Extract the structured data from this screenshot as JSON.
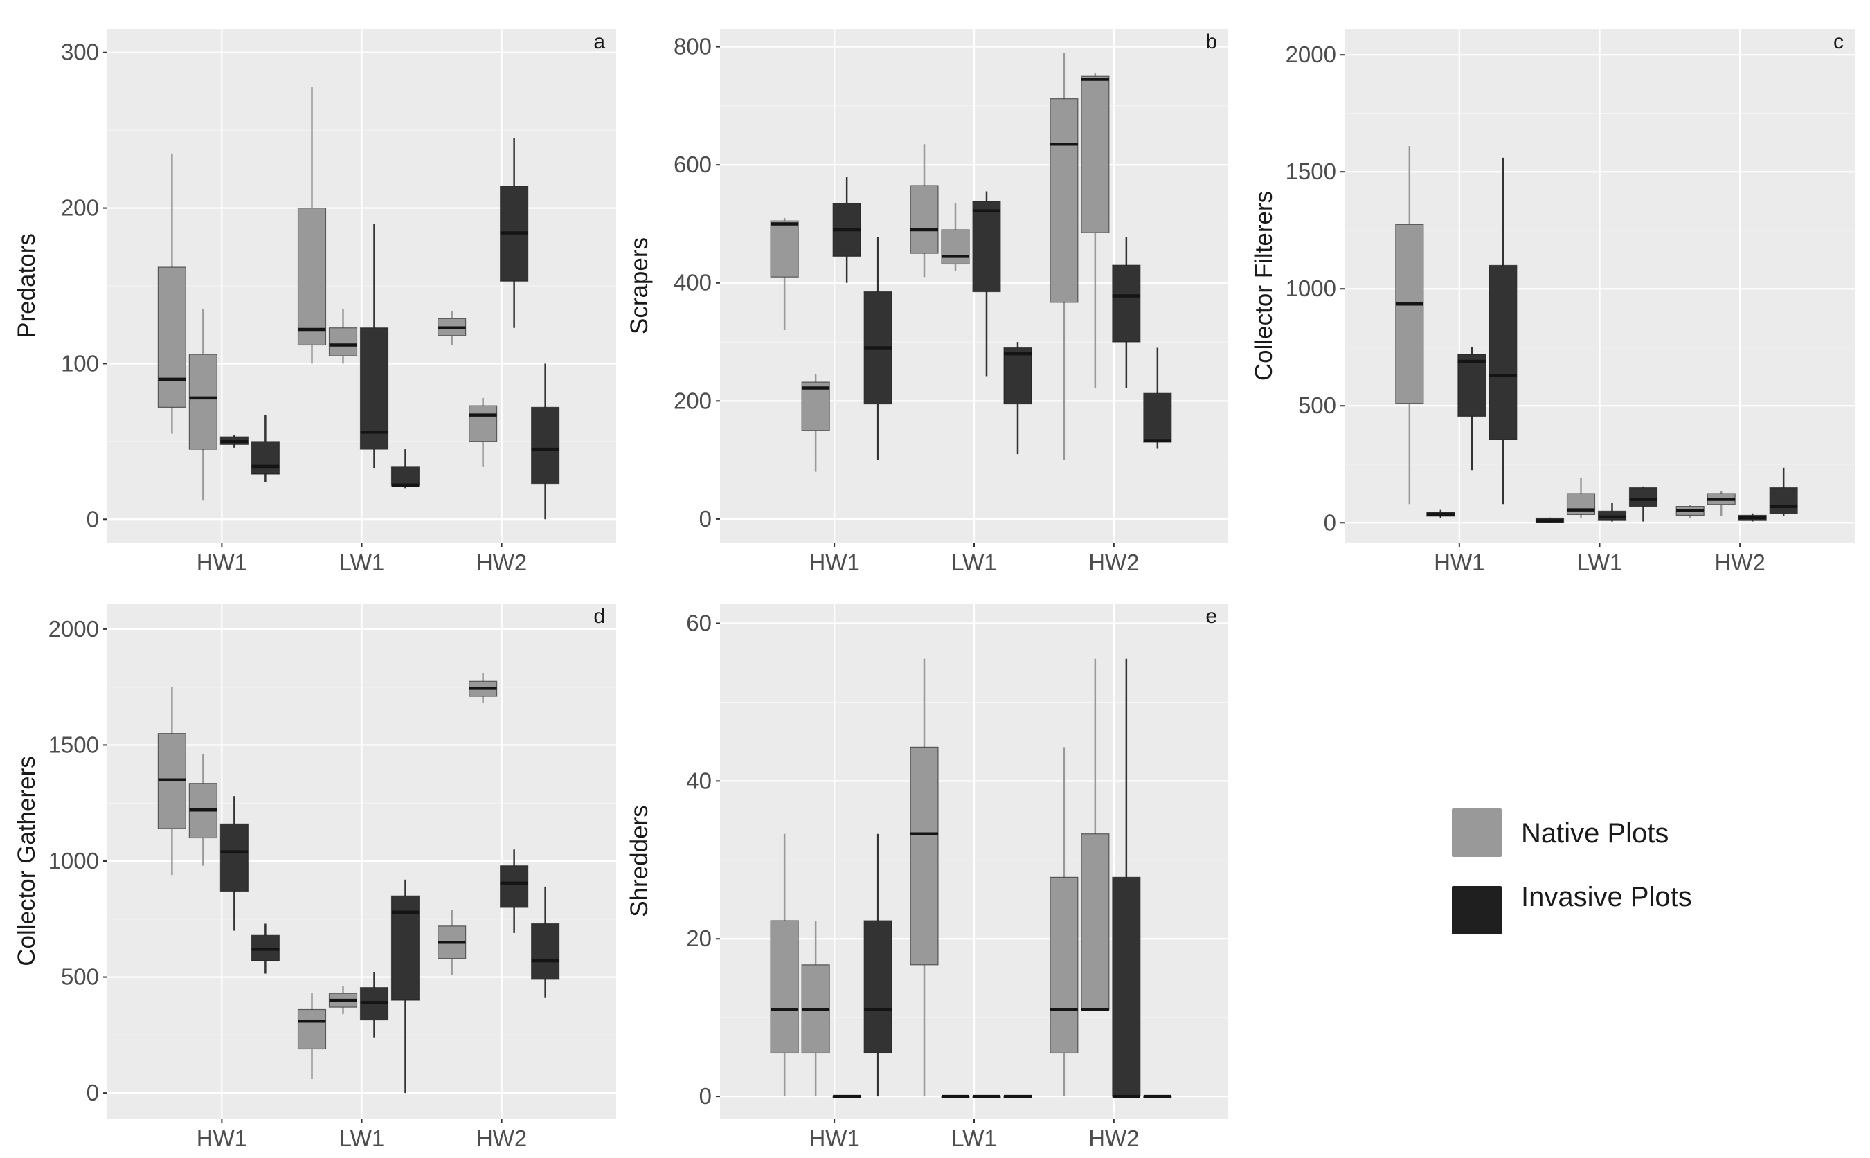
{
  "colors": {
    "native": "#999999",
    "invasive": "#333333",
    "legend_invasive": "#1f1f1f",
    "median": "#141414",
    "panel_bg": "#ebebeb",
    "grid": "#ffffff"
  },
  "legend": {
    "native_label": "Native Plots",
    "invasive_label": "Invasive Plots"
  },
  "chart_data": [
    {
      "type": "boxplot",
      "panel": "a",
      "ylabel": "Predators",
      "xlabel": "",
      "categories": [
        "HW1",
        "LW1",
        "HW2"
      ],
      "ylim": [
        -15,
        315
      ],
      "yticks": [
        0,
        100,
        200,
        300
      ],
      "boxes": [
        {
          "category": "HW1",
          "group": "native",
          "min": 55,
          "q1": 72,
          "median": 90,
          "q3": 162,
          "max": 235
        },
        {
          "category": "HW1",
          "group": "native",
          "min": 12,
          "q1": 45,
          "median": 78,
          "q3": 106,
          "max": 135
        },
        {
          "category": "HW1",
          "group": "invasive",
          "min": 46,
          "q1": 48,
          "median": 50,
          "q3": 53,
          "max": 54
        },
        {
          "category": "HW1",
          "group": "invasive",
          "min": 24,
          "q1": 29,
          "median": 34,
          "q3": 50,
          "max": 67
        },
        {
          "category": "LW1",
          "group": "native",
          "min": 100,
          "q1": 112,
          "median": 122,
          "q3": 200,
          "max": 278
        },
        {
          "category": "LW1",
          "group": "native",
          "min": 100,
          "q1": 105,
          "median": 112,
          "q3": 123,
          "max": 135
        },
        {
          "category": "LW1",
          "group": "invasive",
          "min": 33,
          "q1": 45,
          "median": 56,
          "q3": 123,
          "max": 190
        },
        {
          "category": "LW1",
          "group": "invasive",
          "min": 20,
          "q1": 22,
          "median": 22,
          "q3": 34,
          "max": 45
        },
        {
          "category": "HW2",
          "group": "native",
          "min": 112,
          "q1": 118,
          "median": 123,
          "q3": 129,
          "max": 134
        },
        {
          "category": "HW2",
          "group": "native",
          "min": 34,
          "q1": 50,
          "median": 67,
          "q3": 73,
          "max": 78
        },
        {
          "category": "HW2",
          "group": "invasive",
          "min": 123,
          "q1": 153,
          "median": 184,
          "q3": 214,
          "max": 245
        },
        {
          "category": "HW2",
          "group": "invasive",
          "min": 0,
          "q1": 23,
          "median": 45,
          "q3": 72,
          "max": 100
        }
      ]
    },
    {
      "type": "boxplot",
      "panel": "b",
      "ylabel": "Scrapers",
      "xlabel": "",
      "categories": [
        "HW1",
        "LW1",
        "HW2"
      ],
      "ylim": [
        -40,
        830
      ],
      "yticks": [
        0,
        200,
        400,
        600,
        800
      ],
      "boxes": [
        {
          "category": "HW1",
          "group": "native",
          "min": 320,
          "q1": 410,
          "median": 500,
          "q3": 505,
          "max": 510
        },
        {
          "category": "HW1",
          "group": "native",
          "min": 80,
          "q1": 150,
          "median": 222,
          "q3": 232,
          "max": 245
        },
        {
          "category": "HW1",
          "group": "invasive",
          "min": 400,
          "q1": 445,
          "median": 490,
          "q3": 535,
          "max": 580
        },
        {
          "category": "HW1",
          "group": "invasive",
          "min": 100,
          "q1": 195,
          "median": 290,
          "q3": 385,
          "max": 478
        },
        {
          "category": "LW1",
          "group": "native",
          "min": 410,
          "q1": 450,
          "median": 490,
          "q3": 565,
          "max": 635
        },
        {
          "category": "LW1",
          "group": "native",
          "min": 420,
          "q1": 432,
          "median": 445,
          "q3": 490,
          "max": 535
        },
        {
          "category": "LW1",
          "group": "invasive",
          "min": 242,
          "q1": 385,
          "median": 522,
          "q3": 538,
          "max": 555
        },
        {
          "category": "LW1",
          "group": "invasive",
          "min": 110,
          "q1": 195,
          "median": 280,
          "q3": 290,
          "max": 300
        },
        {
          "category": "HW2",
          "group": "native",
          "min": 100,
          "q1": 367,
          "median": 635,
          "q3": 712,
          "max": 790
        },
        {
          "category": "HW2",
          "group": "native",
          "min": 222,
          "q1": 485,
          "median": 745,
          "q3": 750,
          "max": 755
        },
        {
          "category": "HW2",
          "group": "invasive",
          "min": 222,
          "q1": 300,
          "median": 378,
          "q3": 430,
          "max": 478
        },
        {
          "category": "HW2",
          "group": "invasive",
          "min": 120,
          "q1": 130,
          "median": 133,
          "q3": 213,
          "max": 290
        }
      ]
    },
    {
      "type": "boxplot",
      "panel": "c",
      "ylabel": "Collector Filterers",
      "xlabel": "",
      "categories": [
        "HW1",
        "LW1",
        "HW2"
      ],
      "ylim": [
        -85,
        2110
      ],
      "yticks": [
        0,
        500,
        1000,
        1500,
        2000
      ],
      "boxes": [
        {
          "category": "HW1",
          "group": "native",
          "min": 80,
          "q1": 510,
          "median": 935,
          "q3": 1275,
          "max": 1610
        },
        {
          "category": "HW1",
          "group": "invasive",
          "min": 20,
          "q1": 28,
          "median": 35,
          "q3": 45,
          "max": 55
        },
        {
          "category": "HW1",
          "group": "invasive",
          "min": 225,
          "q1": 455,
          "median": 690,
          "q3": 720,
          "max": 750
        },
        {
          "category": "HW1",
          "group": "invasive",
          "min": 80,
          "q1": 355,
          "median": 630,
          "q3": 1100,
          "max": 1560
        },
        {
          "category": "LW1",
          "group": "invasive",
          "min": -2,
          "q1": 2,
          "median": 8,
          "q3": 20,
          "max": 22
        },
        {
          "category": "LW1",
          "group": "native",
          "min": 20,
          "q1": 35,
          "median": 55,
          "q3": 125,
          "max": 190
        },
        {
          "category": "LW1",
          "group": "invasive",
          "min": 5,
          "q1": 12,
          "median": 25,
          "q3": 50,
          "max": 85
        },
        {
          "category": "LW1",
          "group": "invasive",
          "min": 5,
          "q1": 70,
          "median": 100,
          "q3": 150,
          "max": 155
        },
        {
          "category": "HW2",
          "group": "native",
          "min": 20,
          "q1": 32,
          "median": 52,
          "q3": 70,
          "max": 75
        },
        {
          "category": "HW2",
          "group": "native",
          "min": 30,
          "q1": 78,
          "median": 100,
          "q3": 125,
          "max": 135
        },
        {
          "category": "HW2",
          "group": "invasive",
          "min": 5,
          "q1": 12,
          "median": 22,
          "q3": 32,
          "max": 40
        },
        {
          "category": "HW2",
          "group": "invasive",
          "min": 30,
          "q1": 40,
          "median": 70,
          "q3": 150,
          "max": 235
        }
      ]
    },
    {
      "type": "boxplot",
      "panel": "d",
      "ylabel": "Collector Gatherers",
      "xlabel": "",
      "categories": [
        "HW1",
        "LW1",
        "HW2"
      ],
      "ylim": [
        -110,
        2110
      ],
      "yticks": [
        0,
        500,
        1000,
        1500,
        2000
      ],
      "boxes": [
        {
          "category": "HW1",
          "group": "native",
          "min": 940,
          "q1": 1140,
          "median": 1350,
          "q3": 1550,
          "max": 1750
        },
        {
          "category": "HW1",
          "group": "native",
          "min": 980,
          "q1": 1100,
          "median": 1220,
          "q3": 1335,
          "max": 1460
        },
        {
          "category": "HW1",
          "group": "invasive",
          "min": 700,
          "q1": 870,
          "median": 1040,
          "q3": 1160,
          "max": 1280
        },
        {
          "category": "HW1",
          "group": "invasive",
          "min": 515,
          "q1": 570,
          "median": 620,
          "q3": 680,
          "max": 730
        },
        {
          "category": "LW1",
          "group": "native",
          "min": 60,
          "q1": 190,
          "median": 310,
          "q3": 360,
          "max": 430
        },
        {
          "category": "LW1",
          "group": "native",
          "min": 340,
          "q1": 370,
          "median": 400,
          "q3": 430,
          "max": 460
        },
        {
          "category": "LW1",
          "group": "invasive",
          "min": 240,
          "q1": 315,
          "median": 390,
          "q3": 455,
          "max": 520
        },
        {
          "category": "LW1",
          "group": "invasive",
          "min": 0,
          "q1": 400,
          "median": 780,
          "q3": 850,
          "max": 920
        },
        {
          "category": "HW2",
          "group": "native",
          "min": 510,
          "q1": 580,
          "median": 650,
          "q3": 720,
          "max": 790
        },
        {
          "category": "HW2",
          "group": "native",
          "min": 1680,
          "q1": 1710,
          "median": 1745,
          "q3": 1775,
          "max": 1810
        },
        {
          "category": "HW2",
          "group": "invasive",
          "min": 690,
          "q1": 800,
          "median": 905,
          "q3": 980,
          "max": 1050
        },
        {
          "category": "HW2",
          "group": "invasive",
          "min": 410,
          "q1": 490,
          "median": 570,
          "q3": 730,
          "max": 890
        }
      ]
    },
    {
      "type": "boxplot",
      "panel": "e",
      "ylabel": "Shredders",
      "xlabel": "",
      "categories": [
        "HW1",
        "LW1",
        "HW2"
      ],
      "ylim": [
        -2.8,
        62.5
      ],
      "yticks": [
        0,
        20,
        40,
        60
      ],
      "boxes": [
        {
          "category": "HW1",
          "group": "native",
          "min": 0,
          "q1": 5.5,
          "median": 11,
          "q3": 22.3,
          "max": 33.3
        },
        {
          "category": "HW1",
          "group": "native",
          "min": 0,
          "q1": 5.5,
          "median": 11,
          "q3": 16.7,
          "max": 22.3
        },
        {
          "category": "HW1",
          "group": "invasive",
          "min": 0,
          "q1": 0,
          "median": 0,
          "q3": 0,
          "max": 0
        },
        {
          "category": "HW1",
          "group": "invasive",
          "min": 0,
          "q1": 5.5,
          "median": 11,
          "q3": 22.3,
          "max": 33.3
        },
        {
          "category": "LW1",
          "group": "native",
          "min": 0,
          "q1": 16.7,
          "median": 33.3,
          "q3": 44.3,
          "max": 55.5
        },
        {
          "category": "LW1",
          "group": "invasive",
          "min": 0,
          "q1": 0,
          "median": 0,
          "q3": 0,
          "max": 0
        },
        {
          "category": "LW1",
          "group": "invasive",
          "min": 0,
          "q1": 0,
          "median": 0,
          "q3": 0,
          "max": 0
        },
        {
          "category": "LW1",
          "group": "invasive",
          "min": 0,
          "q1": 0,
          "median": 0,
          "q3": 0,
          "max": 0
        },
        {
          "category": "HW2",
          "group": "native",
          "min": 0,
          "q1": 5.5,
          "median": 11,
          "q3": 27.8,
          "max": 44.3
        },
        {
          "category": "HW2",
          "group": "native",
          "min": 11,
          "q1": 11,
          "median": 11,
          "q3": 33.3,
          "max": 55.5
        },
        {
          "category": "HW2",
          "group": "invasive",
          "min": 0,
          "q1": 0,
          "median": 0,
          "q3": 27.8,
          "max": 55.5
        },
        {
          "category": "HW2",
          "group": "invasive",
          "min": 0,
          "q1": 0,
          "median": 0,
          "q3": 0,
          "max": 0
        }
      ]
    }
  ]
}
